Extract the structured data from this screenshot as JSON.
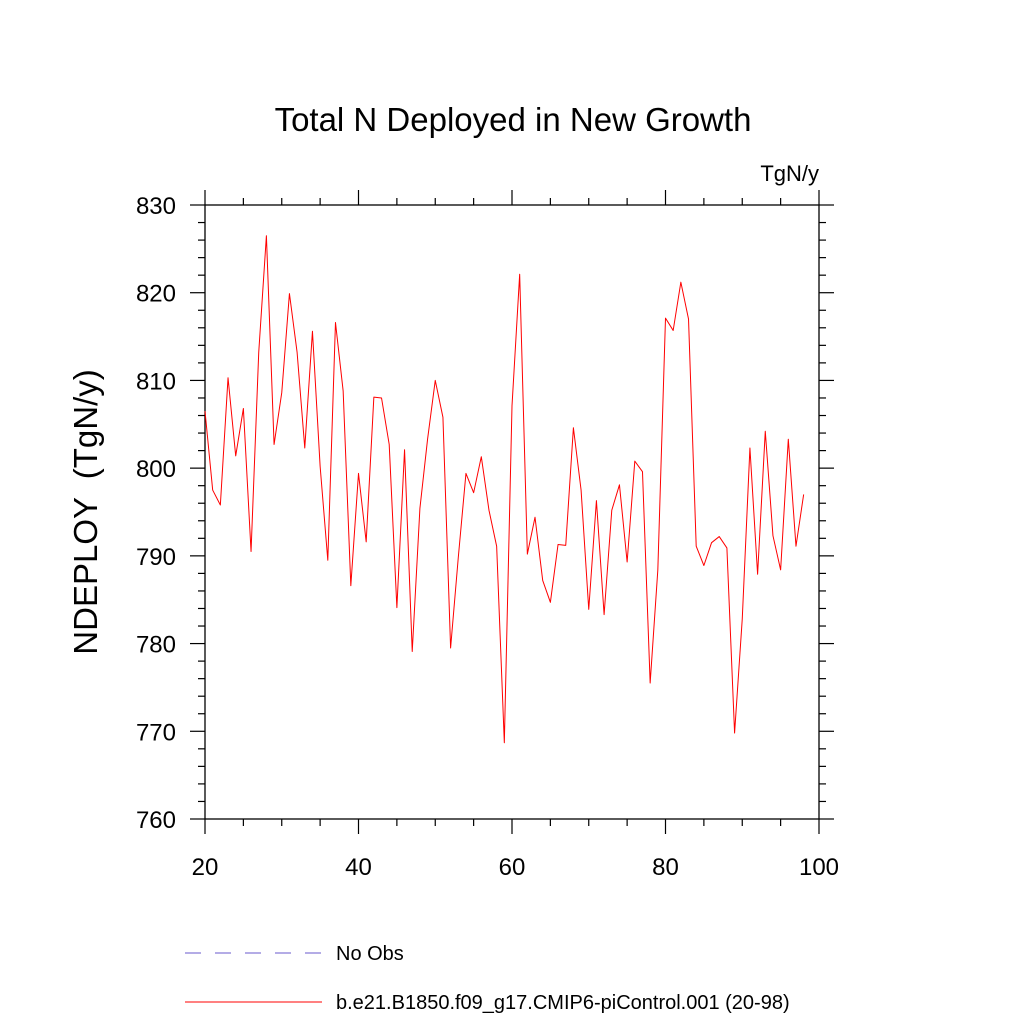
{
  "chart_data": {
    "type": "line",
    "title": "Total N Deployed in New Growth",
    "units_label": "TgN/y",
    "xlabel": "",
    "ylabel": "NDEPLOY  (TgN/y)",
    "xlim": [
      20,
      100
    ],
    "ylim": [
      760,
      830
    ],
    "x_major_ticks": [
      20,
      40,
      60,
      80,
      100
    ],
    "x_tick_labels": [
      "20",
      "40",
      "60",
      "80",
      "100"
    ],
    "x_minor_step": 5,
    "y_major_ticks": [
      760,
      770,
      780,
      790,
      800,
      810,
      820,
      830
    ],
    "y_tick_labels": [
      "760",
      "770",
      "780",
      "790",
      "800",
      "810",
      "820",
      "830"
    ],
    "y_minor_step": 2,
    "grid": false,
    "legend_position": "bottom",
    "series": [
      {
        "name": "No Obs",
        "color": "#6a5acd",
        "dashed": true,
        "x": [],
        "values": []
      },
      {
        "name": "b.e21.B1850.f09_g17.CMIP6-piControl.001 (20-98)",
        "color": "#ff0000",
        "dashed": false,
        "x": [
          20,
          21,
          22,
          23,
          24,
          25,
          26,
          27,
          28,
          29,
          30,
          31,
          32,
          33,
          34,
          35,
          36,
          37,
          38,
          39,
          40,
          41,
          42,
          43,
          44,
          45,
          46,
          47,
          48,
          49,
          50,
          51,
          52,
          53,
          54,
          55,
          56,
          57,
          58,
          59,
          60,
          61,
          62,
          63,
          64,
          65,
          66,
          67,
          68,
          69,
          70,
          71,
          72,
          73,
          74,
          75,
          76,
          77,
          78,
          79,
          80,
          81,
          82,
          83,
          84,
          85,
          86,
          87,
          88,
          89,
          90,
          91,
          92,
          93,
          94,
          95,
          96,
          97,
          98
        ],
        "values": [
          806.5,
          797.5,
          795.8,
          810.3,
          801.4,
          806.8,
          790.5,
          813.2,
          826.5,
          802.7,
          808.6,
          819.9,
          813.2,
          802.3,
          815.6,
          800.2,
          789.5,
          816.6,
          808.8,
          786.6,
          799.4,
          791.6,
          808.1,
          808.0,
          802.7,
          784.1,
          802.1,
          779.1,
          795.4,
          803.3,
          810.0,
          805.8,
          779.5,
          789.8,
          799.4,
          797.2,
          801.3,
          795.2,
          791.1,
          768.7,
          807.1,
          822.1,
          790.2,
          794.4,
          787.2,
          784.7,
          791.3,
          791.2,
          804.6,
          797.5,
          783.9,
          796.3,
          783.3,
          795.2,
          798.1,
          789.3,
          800.8,
          799.6,
          775.5,
          788.4,
          817.1,
          815.7,
          821.2,
          817.0,
          791.1,
          788.9,
          791.5,
          792.2,
          790.9,
          769.8,
          782.8,
          802.3,
          787.9,
          804.2,
          792.3,
          788.4,
          803.3,
          791.1,
          797.0
        ]
      }
    ]
  }
}
